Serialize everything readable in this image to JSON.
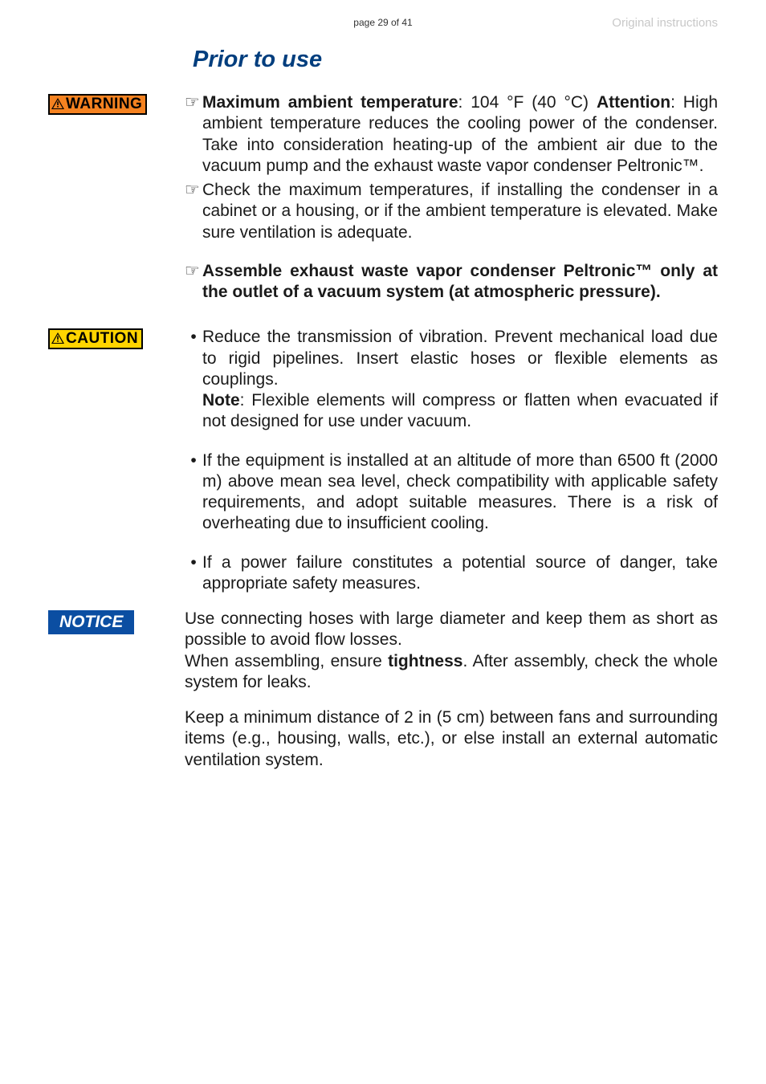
{
  "header": {
    "page_num": "page 29 of 41",
    "orig": "Original instructions"
  },
  "title": "Prior to use",
  "badges": {
    "warning": "WARNING",
    "caution": "CAUTION",
    "notice": "NOTICE"
  },
  "warning_items": [
    {
      "marker": "hand",
      "html": "<b>Maximum ambient temperature</b>: 104 °F (40 °C) <b>Attention</b>: High ambient temperature reduces the cooling power of the condenser. Take into consideration heating-up of the ambient air due to the vacuum pump and the exhaust waste vapor condenser Peltronic™."
    },
    {
      "marker": "hand",
      "html": "Check the maximum temperatures, if installing the condenser in a cabinet or a housing, or if the ambient temperature is elevated. Make sure ventilation is adequate."
    }
  ],
  "assemble_item": {
    "marker": "hand",
    "html": "<b>Assemble exhaust waste vapor condenser Peltronic™ only at the outlet of a vacuum system (at atmospheric pressure).</b>"
  },
  "caution_items": [
    {
      "marker": "bullet",
      "html": "Reduce the transmission of vibration. Prevent mechanical load due to rigid pipelines. Insert elastic hoses or flexible elements as couplings.<br><b>Note</b>: Flexible elements will compress or flatten when evacuated if not designed for use under vacuum."
    },
    {
      "marker": "bullet",
      "html": "If the equipment is installed at an altitude of more than 6500 ft (2000 m) above mean sea level, check compatibility with applicable safety requirements, and adopt suitable measures.  There is a risk of overheating due to insufficient cooling."
    },
    {
      "marker": "bullet",
      "html": "If a power failure constitutes a potential source of danger, take appropriate safety measures."
    }
  ],
  "notice_paras": [
    "Use connecting hoses with large diameter and keep them as short as possible to avoid flow losses.",
    "When assembling, ensure <b>tightness</b>. After assembly, check the whole system for leaks.",
    "Keep a minimum distance of 2 in (5 cm) between fans and surrounding items (e.g., housing, walls, etc.), or else install an external automatic ventilation system."
  ],
  "colors": {
    "title": "#003e7e",
    "warning_bg": "#f58220",
    "caution_bg": "#ffd400",
    "notice_bg": "#0b4ea2",
    "orig_gray": "#c8c8c8"
  }
}
